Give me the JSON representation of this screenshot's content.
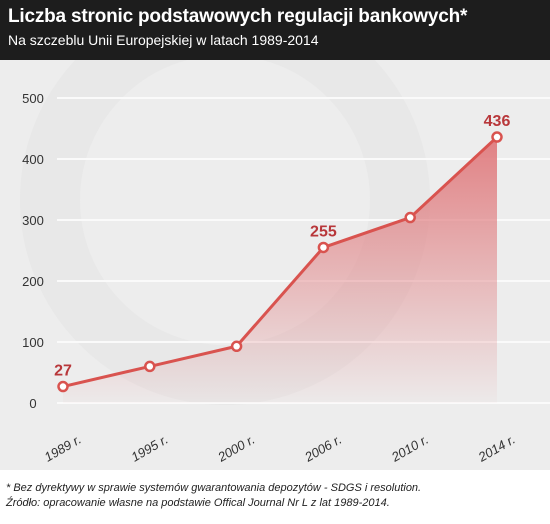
{
  "header": {
    "title": "Liczba stronic podstawowych regulacji bankowych*",
    "subtitle": "Na szczeblu Unii Europejskiej w latach 1989-2014"
  },
  "footer": {
    "footnote": "* Bez dyrektywy w sprawie systemów gwarantowania depozytów - SDGS i resolution.",
    "source": "Źródło: opracowanie własne na podstawie Offical Journal Nr L z lat 1989-2014."
  },
  "colors": {
    "header_bg": "#1d1d1d",
    "plot_bg": "#ededed",
    "line": "#d9534f",
    "label": "#b8373a",
    "fill": "#e07b7e",
    "grid": "#ffffff"
  },
  "chart_data": {
    "type": "area",
    "title": "Liczba stronic podstawowych regulacji bankowych*",
    "subtitle": "Na szczeblu Unii Europejskiej w latach 1989-2014",
    "xlabel": "",
    "ylabel": "",
    "ylim": [
      0,
      500
    ],
    "yticks": [
      0,
      100,
      200,
      300,
      400,
      500
    ],
    "categories": [
      "1989 r.",
      "1995 r.",
      "2000 r.",
      "2006 r.",
      "2010 r.",
      "2014 r."
    ],
    "values": [
      27,
      60,
      93,
      255,
      304,
      436
    ],
    "data_labels": [
      {
        "index": 0,
        "text": "27"
      },
      {
        "index": 3,
        "text": "255"
      },
      {
        "index": 5,
        "text": "436"
      }
    ],
    "grid": true,
    "legend": "none"
  }
}
